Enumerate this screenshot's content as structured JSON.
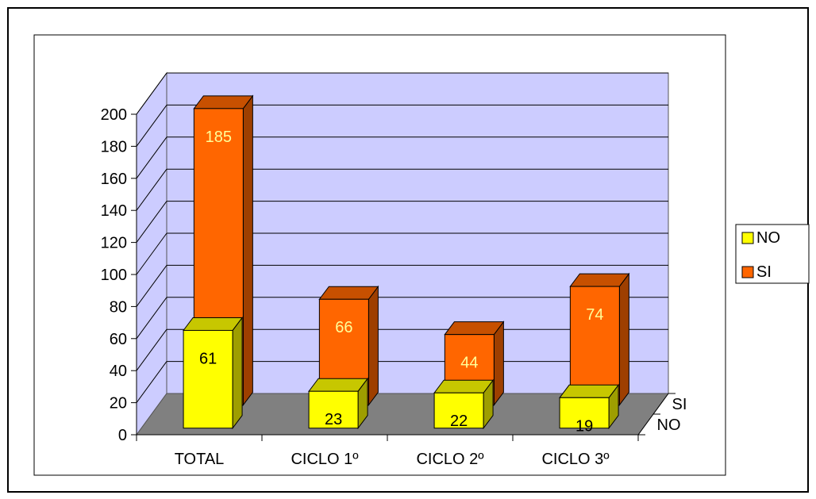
{
  "chart_data": {
    "type": "bar",
    "title": "",
    "xlabel": "",
    "ylabel": "",
    "categories": [
      "TOTAL",
      "CICLO 1º",
      "CICLO 2º",
      "CICLO 3º"
    ],
    "series": [
      {
        "name": "NO",
        "values": [
          61,
          23,
          22,
          19
        ]
      },
      {
        "name": "SI",
        "values": [
          185,
          66,
          44,
          74
        ]
      }
    ],
    "ylim": [
      0,
      200
    ],
    "yticks": [
      "0",
      "20",
      "40",
      "60",
      "80",
      "100",
      "120",
      "140",
      "160",
      "180",
      "200"
    ],
    "depth_labels": [
      "SI",
      "NO"
    ],
    "legend": {
      "position": "right",
      "items": [
        {
          "label": "NO",
          "color": "#ffff00"
        },
        {
          "label": "SI",
          "color": "#ff6600"
        }
      ]
    },
    "grid": true,
    "colors": {
      "NO": "#ffff00",
      "SI": "#ff6600",
      "back_wall": "#ccccff",
      "floor": "#808080"
    }
  }
}
